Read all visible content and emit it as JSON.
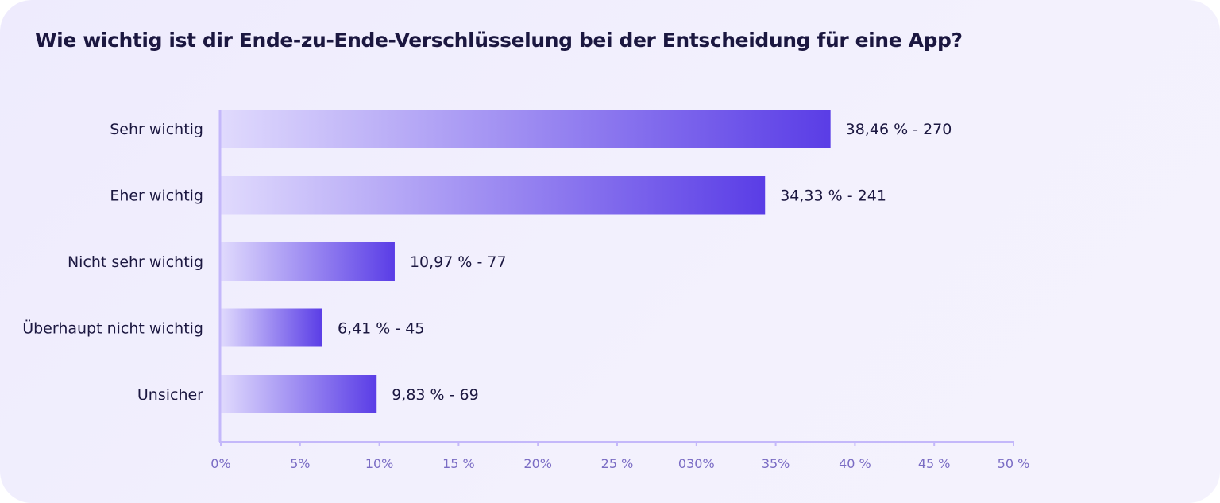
{
  "chart_data": {
    "type": "bar",
    "orientation": "horizontal",
    "title": "Wie wichtig ist dir Ende-zu-Ende-Verschlüsselung bei der Entscheidung für eine App?",
    "categories": [
      "Sehr wichtig",
      "Eher wichtig",
      "Nicht sehr wichtig",
      "Überhaupt nicht wichtig",
      "Unsicher"
    ],
    "values": [
      38.46,
      34.33,
      10.97,
      6.41,
      9.83
    ],
    "counts": [
      270,
      241,
      77,
      45,
      69
    ],
    "data_labels": [
      "38,46 % - 270",
      "34,33 % - 241",
      "10,97 % - 77",
      "6,41 % - 45",
      "9,83 % - 69"
    ],
    "xlabel": "",
    "ylabel": "",
    "xlim": [
      0,
      50
    ],
    "x_ticks": [
      0,
      5,
      10,
      15,
      20,
      25,
      30,
      35,
      40,
      45,
      50
    ],
    "x_tick_labels": [
      "0%",
      "5%",
      "10%",
      "15 %",
      "20%",
      "25 %",
      "030%",
      "35%",
      "40 %",
      "45 %",
      "50 %"
    ],
    "grid": false,
    "legend": "none",
    "colors": {
      "bar_start": "#e0dafd",
      "bar_end": "#5a3de6",
      "axis": "#c4b8fa",
      "tick_text": "#7a6cc4",
      "text": "#1b1740",
      "background": "#f0eefd"
    }
  }
}
